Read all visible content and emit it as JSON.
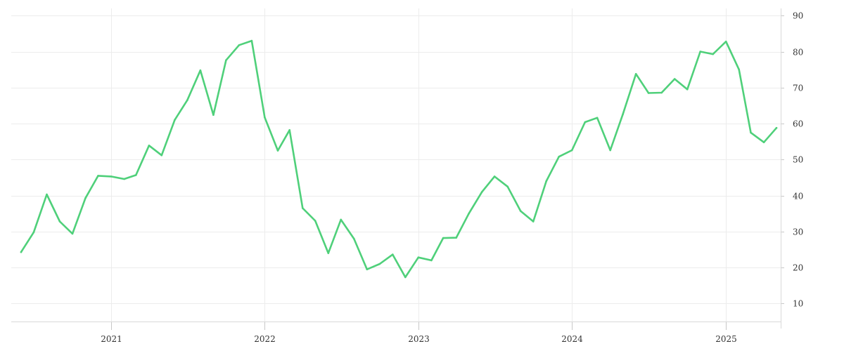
{
  "chart_data": {
    "type": "line",
    "x_type": "date",
    "x_ticks": [
      "2021",
      "2022",
      "2023",
      "2024",
      "2025"
    ],
    "y_ticks": [
      10,
      20,
      30,
      40,
      50,
      60,
      70,
      80,
      90
    ],
    "xlim": [
      "2020-06-01",
      "2025-05-01"
    ],
    "ylim": [
      5,
      92
    ],
    "y_axis_position": "right",
    "grid": true,
    "legend": "none",
    "colors": {
      "series": "#4fd07a"
    },
    "series": [
      {
        "x": [
          "2020-06-01",
          "2020-07-01",
          "2020-08-01",
          "2020-09-01",
          "2020-10-01",
          "2020-11-01",
          "2020-12-01",
          "2021-01-01",
          "2021-02-01",
          "2021-03-01",
          "2021-04-01",
          "2021-05-01",
          "2021-06-01",
          "2021-07-01",
          "2021-08-01",
          "2021-09-01",
          "2021-10-01",
          "2021-11-01",
          "2021-12-01",
          "2022-01-01",
          "2022-02-01",
          "2022-03-01",
          "2022-04-01",
          "2022-05-01",
          "2022-06-01",
          "2022-07-01",
          "2022-08-01",
          "2022-09-01",
          "2022-10-01",
          "2022-11-01",
          "2022-12-01",
          "2023-01-01",
          "2023-02-01",
          "2023-03-01",
          "2023-04-01",
          "2023-05-01",
          "2023-06-01",
          "2023-07-01",
          "2023-08-01",
          "2023-09-01",
          "2023-10-01",
          "2023-11-01",
          "2023-12-01",
          "2024-01-01",
          "2024-02-01",
          "2024-03-01",
          "2024-04-01",
          "2024-05-01",
          "2024-06-01",
          "2024-07-01",
          "2024-08-01",
          "2024-09-01",
          "2024-10-01",
          "2024-11-01",
          "2024-12-01",
          "2025-01-01",
          "2025-02-01",
          "2025-03-01",
          "2025-04-01",
          "2025-05-01"
        ],
        "y": [
          24.3,
          29.8,
          40.3,
          32.8,
          29.4,
          39.3,
          45.5,
          45.3,
          44.6,
          45.7,
          53.9,
          51.2,
          61.0,
          66.5,
          74.8,
          62.4,
          77.6,
          81.8,
          83.0,
          61.7,
          52.5,
          58.2,
          36.5,
          33.0,
          24.0,
          33.3,
          28.0,
          19.5,
          21.0,
          23.6,
          17.3,
          22.8,
          22.0,
          28.2,
          28.3,
          35.0,
          41.0,
          45.3,
          42.5,
          35.7,
          32.8,
          44.0,
          50.8,
          52.6,
          60.4,
          61.6,
          52.6,
          62.6,
          73.8,
          68.5,
          68.6,
          72.4,
          69.5,
          80.0,
          79.3,
          82.8,
          75.0,
          57.5,
          54.8,
          58.8
        ]
      }
    ]
  }
}
